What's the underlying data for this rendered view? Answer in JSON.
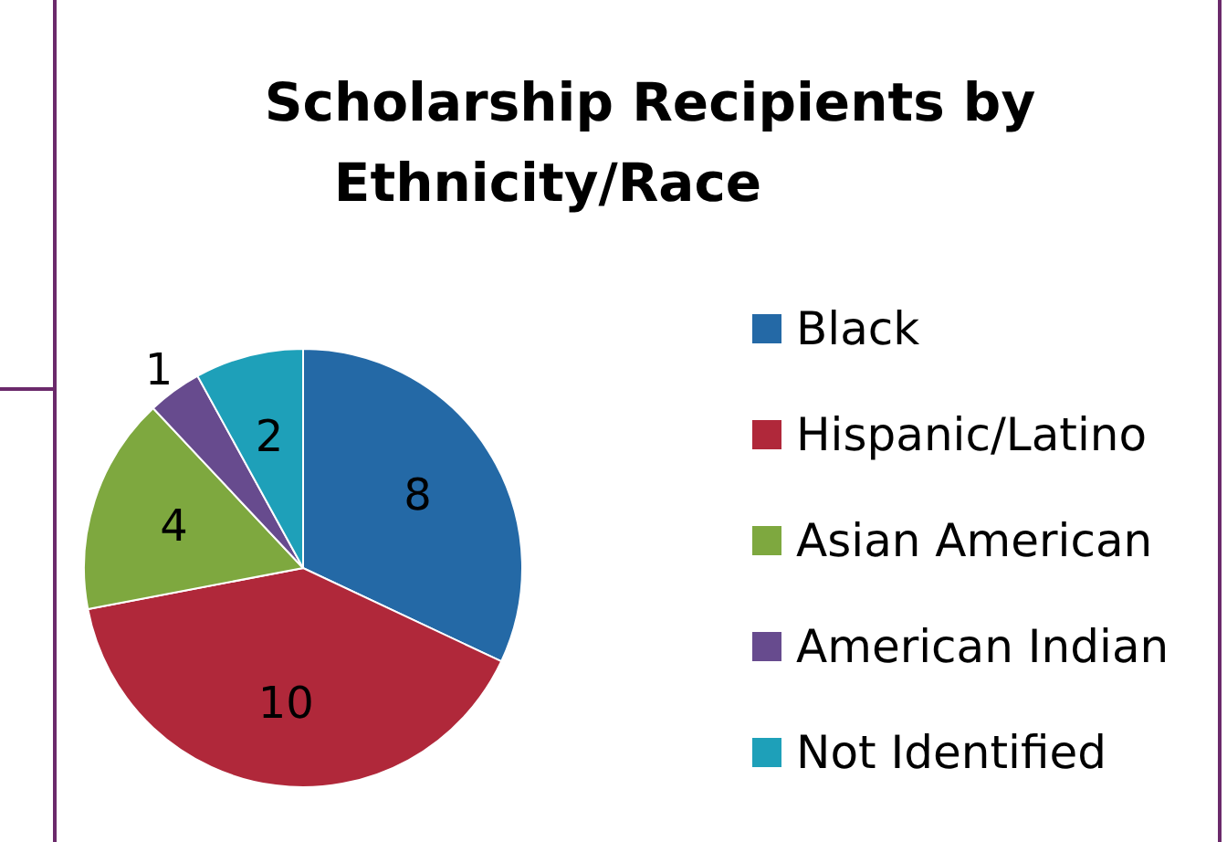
{
  "chart_data": {
    "type": "pie",
    "title": "Scholarship Recipients by Ethnicity/Race",
    "categories": [
      "Black",
      "Hispanic/Latino",
      "Asian American",
      "American Indian",
      "Not Identified"
    ],
    "values": [
      8,
      10,
      4,
      1,
      2
    ],
    "colors": [
      "#2469a6",
      "#b0283a",
      "#7ea83f",
      "#674b8e",
      "#1ea0b9"
    ],
    "data_labels": true,
    "legend": "right"
  }
}
